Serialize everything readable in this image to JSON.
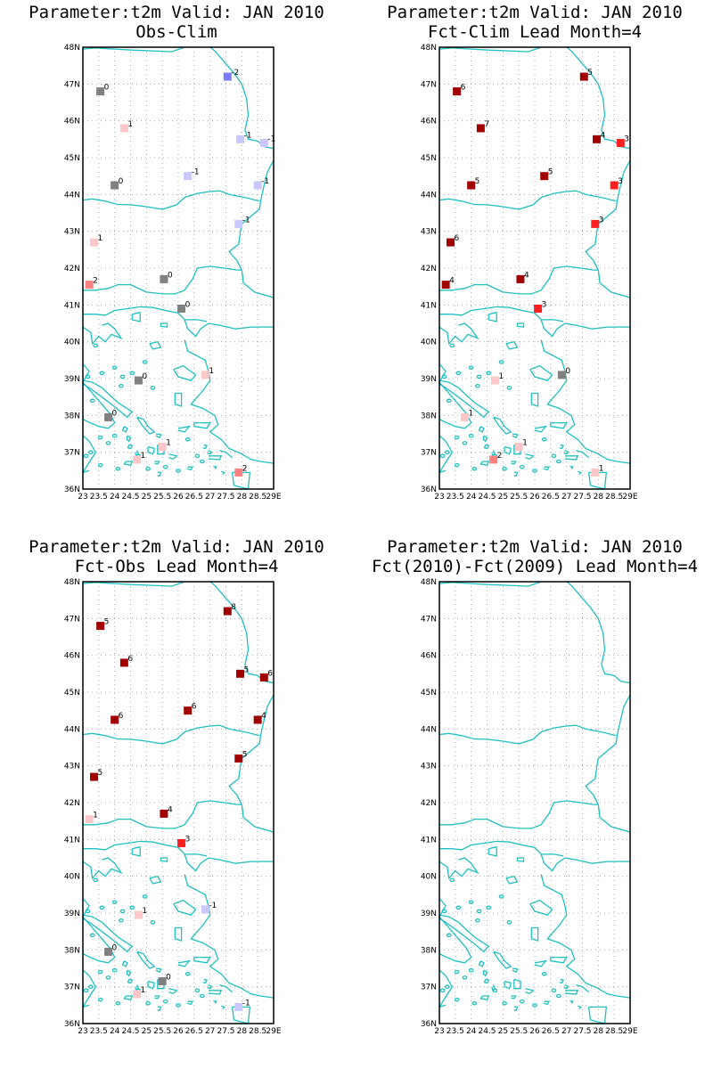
{
  "colors": {
    "-2": "#7b7bff",
    "-1": "#c8c8ff",
    "0": "#808080",
    "1": "#ffc8c8",
    "2": "#ff8080",
    "3": "#ff2020",
    "4": "#a00000",
    "5": "#a00000",
    "6": "#a00000",
    "7": "#a00000",
    "8": "#a00000",
    "coast": "#20c0c0",
    "grid": "#9a9a9a"
  },
  "axes": {
    "x_ticks": [
      "23",
      "23.5",
      "24",
      "24.5",
      "25",
      "25.5",
      "26",
      "26.5",
      "27",
      "27.5",
      "28",
      "28.5",
      "29E"
    ],
    "x_values": [
      23,
      23.5,
      24,
      24.5,
      25,
      25.5,
      26,
      26.5,
      27,
      27.5,
      28,
      28.5,
      29
    ],
    "y_ticks": [
      "36N",
      "37N",
      "38N",
      "39N",
      "40N",
      "41N",
      "42N",
      "43N",
      "44N",
      "45N",
      "46N",
      "47N",
      "48N"
    ],
    "y_values": [
      36,
      37,
      38,
      39,
      40,
      41,
      42,
      43,
      44,
      45,
      46,
      47,
      48
    ],
    "xlim": [
      23,
      29
    ],
    "ylim": [
      36,
      48
    ]
  },
  "chart_data": [
    {
      "type": "scatter",
      "title": "Parameter:t2m Valid: JAN 2010",
      "subtitle": "Obs-Clim",
      "points": [
        {
          "lon": 23.55,
          "lat": 46.8,
          "value": 0
        },
        {
          "lon": 24.3,
          "lat": 45.8,
          "value": 1
        },
        {
          "lon": 24.0,
          "lat": 44.25,
          "value": 0
        },
        {
          "lon": 23.35,
          "lat": 42.7,
          "value": 1
        },
        {
          "lon": 23.2,
          "lat": 41.55,
          "value": 2
        },
        {
          "lon": 25.55,
          "lat": 41.7,
          "value": 0
        },
        {
          "lon": 26.1,
          "lat": 40.9,
          "value": 0
        },
        {
          "lon": 24.75,
          "lat": 38.95,
          "value": 0
        },
        {
          "lon": 23.8,
          "lat": 37.95,
          "value": 0
        },
        {
          "lon": 24.7,
          "lat": 36.8,
          "value": 1
        },
        {
          "lon": 25.5,
          "lat": 37.15,
          "value": 1
        },
        {
          "lon": 26.85,
          "lat": 39.1,
          "value": 1
        },
        {
          "lon": 27.9,
          "lat": 36.45,
          "value": 2
        },
        {
          "lon": 27.55,
          "lat": 47.2,
          "value": -2
        },
        {
          "lon": 27.95,
          "lat": 45.5,
          "value": -1
        },
        {
          "lon": 28.7,
          "lat": 45.4,
          "value": -1
        },
        {
          "lon": 26.3,
          "lat": 44.5,
          "value": -1
        },
        {
          "lon": 28.5,
          "lat": 44.25,
          "value": -1
        },
        {
          "lon": 27.9,
          "lat": 43.2,
          "value": -1
        }
      ]
    },
    {
      "type": "scatter",
      "title": "Parameter:t2m Valid: JAN 2010",
      "subtitle": "Fct-Clim Lead Month=4",
      "points": [
        {
          "lon": 23.55,
          "lat": 46.8,
          "value": 6
        },
        {
          "lon": 24.3,
          "lat": 45.8,
          "value": 7
        },
        {
          "lon": 24.0,
          "lat": 44.25,
          "value": 5
        },
        {
          "lon": 23.35,
          "lat": 42.7,
          "value": 6
        },
        {
          "lon": 23.2,
          "lat": 41.55,
          "value": 4
        },
        {
          "lon": 25.55,
          "lat": 41.7,
          "value": 4
        },
        {
          "lon": 26.1,
          "lat": 40.9,
          "value": 3
        },
        {
          "lon": 24.75,
          "lat": 38.95,
          "value": 1
        },
        {
          "lon": 23.8,
          "lat": 37.95,
          "value": 1
        },
        {
          "lon": 24.7,
          "lat": 36.8,
          "value": 2
        },
        {
          "lon": 25.5,
          "lat": 37.15,
          "value": 1
        },
        {
          "lon": 26.85,
          "lat": 39.1,
          "value": 0
        },
        {
          "lon": 27.9,
          "lat": 36.45,
          "value": 1
        },
        {
          "lon": 27.55,
          "lat": 47.2,
          "value": 5
        },
        {
          "lon": 27.95,
          "lat": 45.5,
          "value": 4
        },
        {
          "lon": 28.7,
          "lat": 45.4,
          "value": 3
        },
        {
          "lon": 26.3,
          "lat": 44.5,
          "value": 5
        },
        {
          "lon": 28.5,
          "lat": 44.25,
          "value": 3
        },
        {
          "lon": 27.9,
          "lat": 43.2,
          "value": 3
        }
      ]
    },
    {
      "type": "scatter",
      "title": "Parameter:t2m Valid: JAN 2010",
      "subtitle": "Fct-Obs Lead Month=4",
      "points": [
        {
          "lon": 23.55,
          "lat": 46.8,
          "value": 5
        },
        {
          "lon": 24.3,
          "lat": 45.8,
          "value": 6
        },
        {
          "lon": 24.0,
          "lat": 44.25,
          "value": 6
        },
        {
          "lon": 23.35,
          "lat": 42.7,
          "value": 5
        },
        {
          "lon": 23.2,
          "lat": 41.55,
          "value": 1
        },
        {
          "lon": 25.55,
          "lat": 41.7,
          "value": 4
        },
        {
          "lon": 26.1,
          "lat": 40.9,
          "value": 3
        },
        {
          "lon": 24.75,
          "lat": 38.95,
          "value": 1
        },
        {
          "lon": 23.8,
          "lat": 37.95,
          "value": 0
        },
        {
          "lon": 24.7,
          "lat": 36.8,
          "value": 1
        },
        {
          "lon": 25.5,
          "lat": 37.15,
          "value": 0
        },
        {
          "lon": 26.85,
          "lat": 39.1,
          "value": -1
        },
        {
          "lon": 27.9,
          "lat": 36.45,
          "value": -1
        },
        {
          "lon": 27.55,
          "lat": 47.2,
          "value": 8
        },
        {
          "lon": 27.95,
          "lat": 45.5,
          "value": 5
        },
        {
          "lon": 28.7,
          "lat": 45.4,
          "value": 6
        },
        {
          "lon": 26.3,
          "lat": 44.5,
          "value": 6
        },
        {
          "lon": 28.5,
          "lat": 44.25,
          "value": 4
        },
        {
          "lon": 27.9,
          "lat": 43.2,
          "value": 5
        }
      ]
    },
    {
      "type": "scatter",
      "title": "Parameter:t2m Valid: JAN 2010",
      "subtitle": "Fct(2010)-Fct(2009) Lead Month=4",
      "points": []
    }
  ]
}
